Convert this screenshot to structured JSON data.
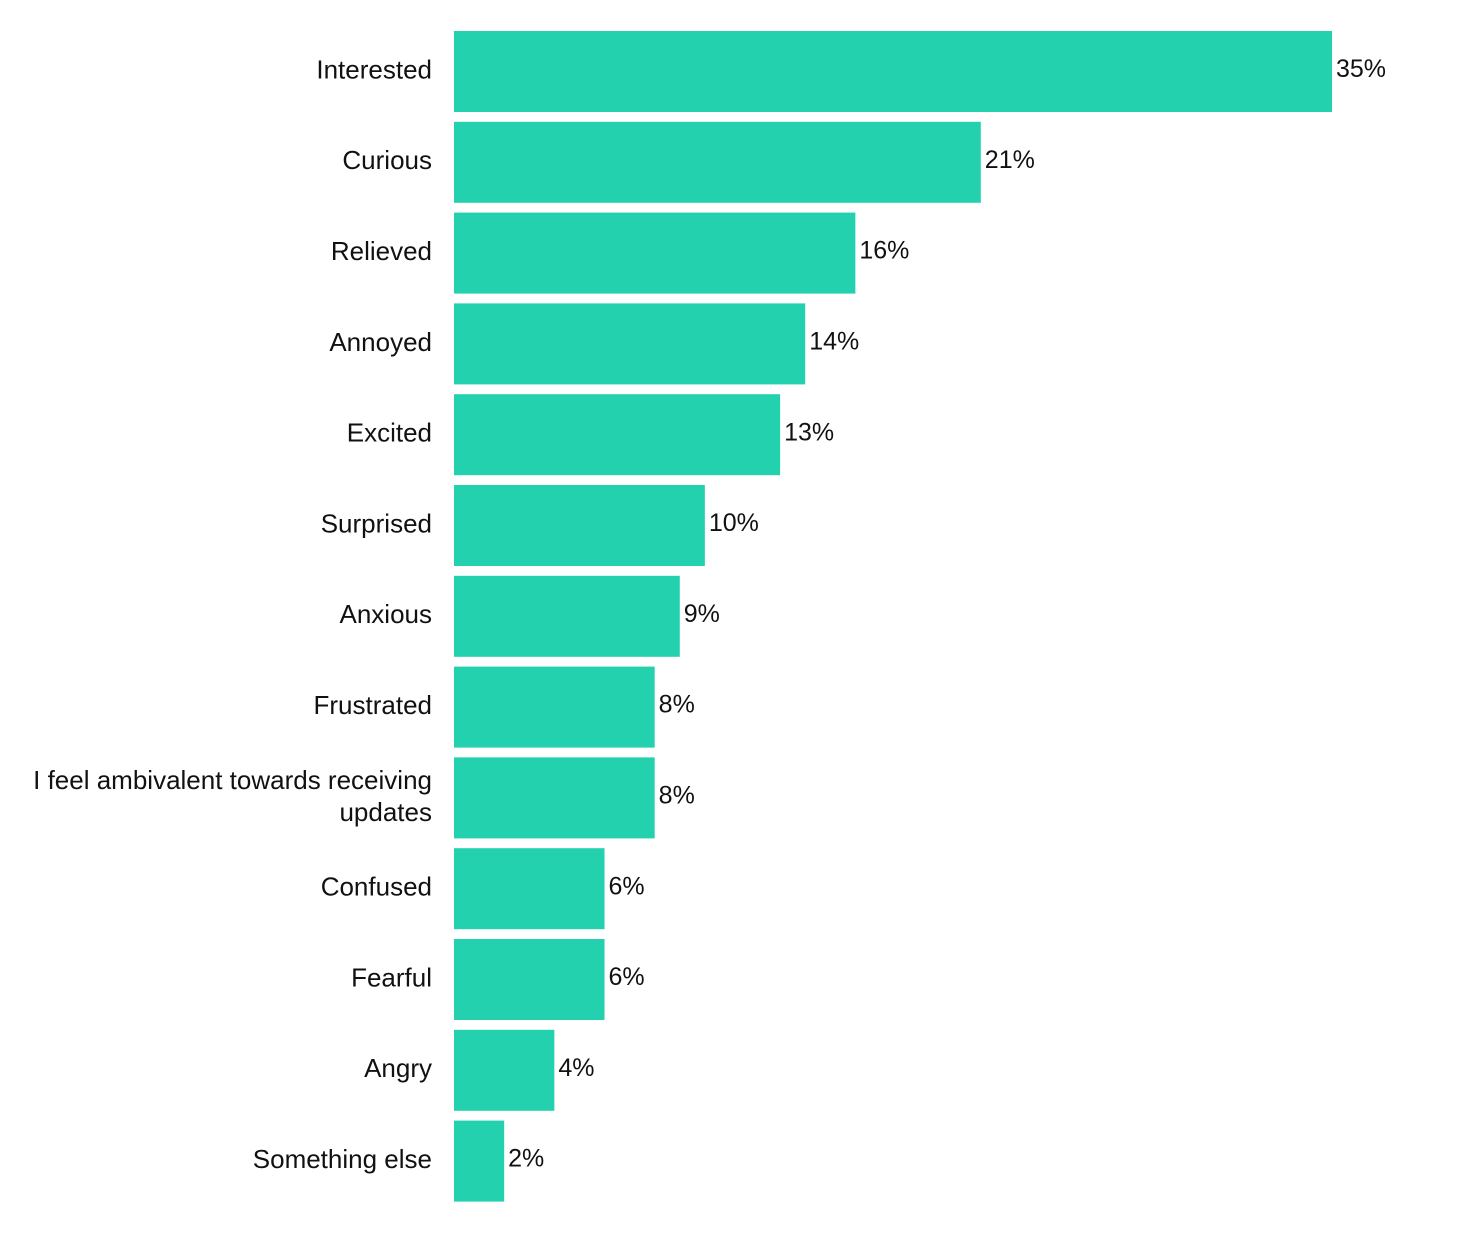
{
  "chart_data": {
    "type": "bar",
    "orientation": "horizontal",
    "title": "",
    "xlabel": "",
    "ylabel": "",
    "xlim": [
      0,
      35
    ],
    "grid": false,
    "legend": "none",
    "value_suffix": "%",
    "bar_color": "#23d1ae",
    "categories": [
      [
        "Interested"
      ],
      [
        "Curious"
      ],
      [
        "Relieved"
      ],
      [
        "Annoyed"
      ],
      [
        "Excited"
      ],
      [
        "Surprised"
      ],
      [
        "Anxious"
      ],
      [
        "Frustrated"
      ],
      [
        "I feel ambivalent towards receiving",
        "updates"
      ],
      [
        "Confused"
      ],
      [
        "Fearful"
      ],
      [
        "Angry"
      ],
      [
        "Something else"
      ]
    ],
    "values": [
      35,
      21,
      16,
      14,
      13,
      10,
      9,
      8,
      8,
      6,
      6,
      4,
      2
    ],
    "value_labels": [
      "35%",
      "21%",
      "16%",
      "14%",
      "13%",
      "10%",
      "9%",
      "8%",
      "8%",
      "6%",
      "6%",
      "4%",
      "2%"
    ]
  }
}
